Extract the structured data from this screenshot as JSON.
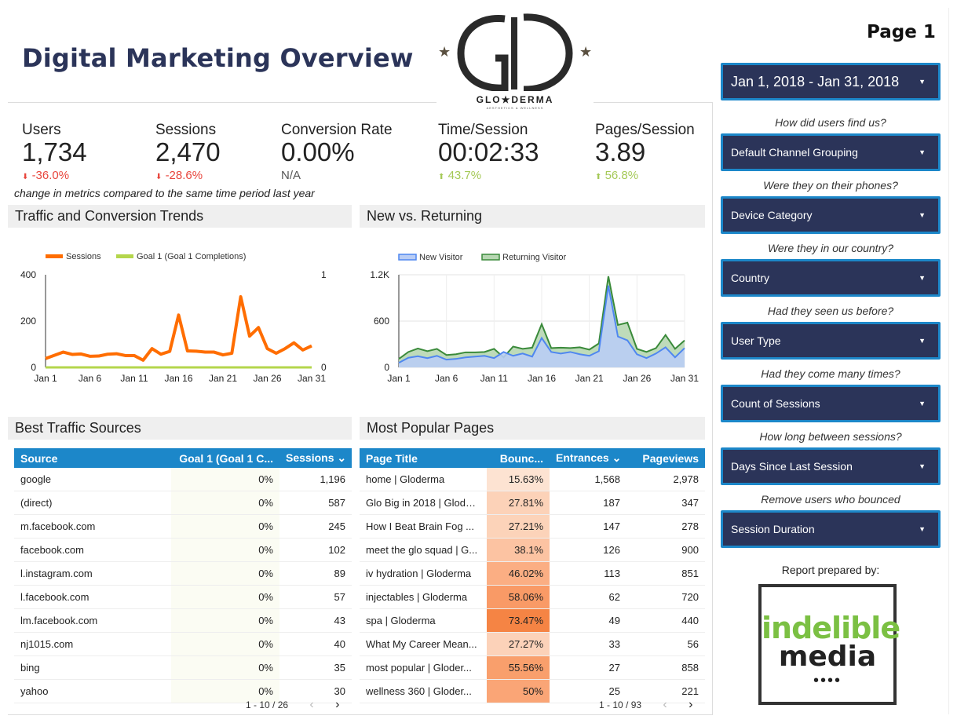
{
  "header": {
    "title": "Digital Marketing Overview",
    "page_label": "Page 1"
  },
  "logo": {
    "text": "GLO★DERMA",
    "tagline": "AESTHETICS & WELLNESS",
    "monogram": "GD"
  },
  "scorecards": [
    {
      "label": "Users",
      "value": "1,734",
      "change": "-36.0%",
      "trend": "down"
    },
    {
      "label": "Sessions",
      "value": "2,470",
      "change": "-28.6%",
      "trend": "down"
    },
    {
      "label": "Conversion Rate",
      "value": "0.00%",
      "change": "N/A",
      "trend": "none"
    },
    {
      "label": "Time/Session",
      "value": "00:02:33",
      "change": "43.7%",
      "trend": "up"
    },
    {
      "label": "Pages/Session",
      "value": "3.89",
      "change": "56.8%",
      "trend": "up"
    }
  ],
  "note": "change in metrics compared to the same time period last year",
  "traffic_panel": {
    "title": "Traffic and Conversion Trends"
  },
  "newret_panel": {
    "title": "New vs. Returning"
  },
  "sources_panel": {
    "title": "Best Traffic Sources"
  },
  "pages_panel": {
    "title": "Most Popular Pages"
  },
  "chart_data": [
    {
      "type": "line",
      "series": [
        {
          "name": "Sessions",
          "color": "#ff6d00",
          "axis": "left",
          "values": [
            38,
            52,
            66,
            56,
            58,
            48,
            49,
            57,
            59,
            51,
            51,
            31,
            81,
            57,
            69,
            226,
            71,
            70,
            66,
            66,
            54,
            61,
            305,
            135,
            172,
            81,
            61,
            81,
            106,
            75,
            93
          ]
        },
        {
          "name": "Goal 1 (Goal 1 Completions)",
          "color": "#b4d64c",
          "axis": "right",
          "values": [
            0,
            0,
            0,
            0,
            0,
            0,
            0,
            0,
            0,
            0,
            0,
            0,
            0,
            0,
            0,
            0,
            0,
            0,
            0,
            0,
            0,
            0,
            0,
            0,
            0,
            0,
            0,
            0,
            0,
            0,
            0
          ]
        }
      ],
      "x_ticks": [
        "Jan 1",
        "Jan 6",
        "Jan 11",
        "Jan 16",
        "Jan 21",
        "Jan 26",
        "Jan 31"
      ],
      "y_ticks_left": [
        "0",
        "200",
        "400"
      ],
      "y_ticks_right": [
        "0",
        "1"
      ],
      "ylim_left": [
        0,
        400
      ],
      "ylim_right": [
        0,
        1
      ]
    },
    {
      "type": "area",
      "series": [
        {
          "name": "New Visitor",
          "color": "#4f87f0",
          "values": [
            60,
            125,
            145,
            120,
            150,
            100,
            110,
            130,
            140,
            150,
            120,
            200,
            150,
            180,
            140,
            380,
            200,
            180,
            200,
            170,
            150,
            210,
            1060,
            400,
            350,
            170,
            120,
            180,
            260,
            130,
            250
          ]
        },
        {
          "name": "Returning Visitor",
          "color": "#3a8a3a",
          "values": [
            110,
            200,
            245,
            210,
            240,
            160,
            170,
            195,
            195,
            200,
            240,
            130,
            270,
            240,
            255,
            560,
            250,
            255,
            250,
            260,
            230,
            310,
            1180,
            550,
            580,
            240,
            200,
            250,
            420,
            240,
            350
          ]
        }
      ],
      "x_ticks": [
        "Jan 1",
        "Jan 6",
        "Jan 11",
        "Jan 16",
        "Jan 21",
        "Jan 26",
        "Jan 31"
      ],
      "y_ticks": [
        "0",
        "600",
        "1.2K"
      ],
      "ylim": [
        0,
        1200
      ]
    }
  ],
  "sources_table": {
    "columns": [
      "Source",
      "Goal 1 (Goal 1 C...",
      "Sessions ⌄"
    ],
    "rows": [
      [
        "google",
        "0%",
        "1,196"
      ],
      [
        "(direct)",
        "0%",
        "587"
      ],
      [
        "m.facebook.com",
        "0%",
        "245"
      ],
      [
        "facebook.com",
        "0%",
        "102"
      ],
      [
        "l.instagram.com",
        "0%",
        "89"
      ],
      [
        "l.facebook.com",
        "0%",
        "57"
      ],
      [
        "lm.facebook.com",
        "0%",
        "43"
      ],
      [
        "nj1015.com",
        "0%",
        "40"
      ],
      [
        "bing",
        "0%",
        "35"
      ],
      [
        "yahoo",
        "0%",
        "30"
      ]
    ],
    "pager": "1 - 10 / 26"
  },
  "pages_table": {
    "columns": [
      "Page Title",
      "Bounc...",
      "Entrances ⌄",
      "Pageviews"
    ],
    "rows": [
      [
        "home | Gloderma",
        "15.63%",
        "1,568",
        "2,978"
      ],
      [
        "Glo Big in 2018 | Gloder...",
        "27.81%",
        "187",
        "347"
      ],
      [
        "How I Beat Brain Fog ...",
        "27.21%",
        "147",
        "278"
      ],
      [
        "meet the glo squad | G...",
        "38.1%",
        "126",
        "900"
      ],
      [
        "iv hydration | Gloderma",
        "46.02%",
        "113",
        "851"
      ],
      [
        "injectables | Gloderma",
        "58.06%",
        "62",
        "720"
      ],
      [
        "spa | Gloderma",
        "73.47%",
        "49",
        "440"
      ],
      [
        "What My Career Mean...",
        "27.27%",
        "33",
        "56"
      ],
      [
        "most popular | Gloder...",
        "55.56%",
        "27",
        "858"
      ],
      [
        "wellness 360 | Gloder...",
        "50%",
        "25",
        "221"
      ]
    ],
    "bounce_colors": [
      "#fde3d2",
      "#fcd2b8",
      "#fcd3b9",
      "#fcc3a2",
      "#fbae83",
      "#f99a66",
      "#f58444",
      "#fcd2b9",
      "#f99f6c",
      "#faa576"
    ],
    "pager": "1 - 10 / 93"
  },
  "sidebar": {
    "date_range": "Jan 1, 2018 - Jan 31, 2018",
    "filters": [
      {
        "question": "How did users find us?",
        "label": "Default Channel Grouping"
      },
      {
        "question": "Were they on their phones?",
        "label": "Device Category"
      },
      {
        "question": "Were they in our country?",
        "label": "Country"
      },
      {
        "question": "Had they seen us before?",
        "label": "User Type"
      },
      {
        "question": "Had they come many times?",
        "label": "Count of Sessions"
      },
      {
        "question": "How long between sessions?",
        "label": "Days Since Last Session"
      },
      {
        "question": "Remove users who bounced",
        "label": "Session Duration"
      }
    ],
    "prepared_by": "Report prepared by:",
    "agency_logo_line1": "indelible",
    "agency_logo_line2": "media"
  }
}
